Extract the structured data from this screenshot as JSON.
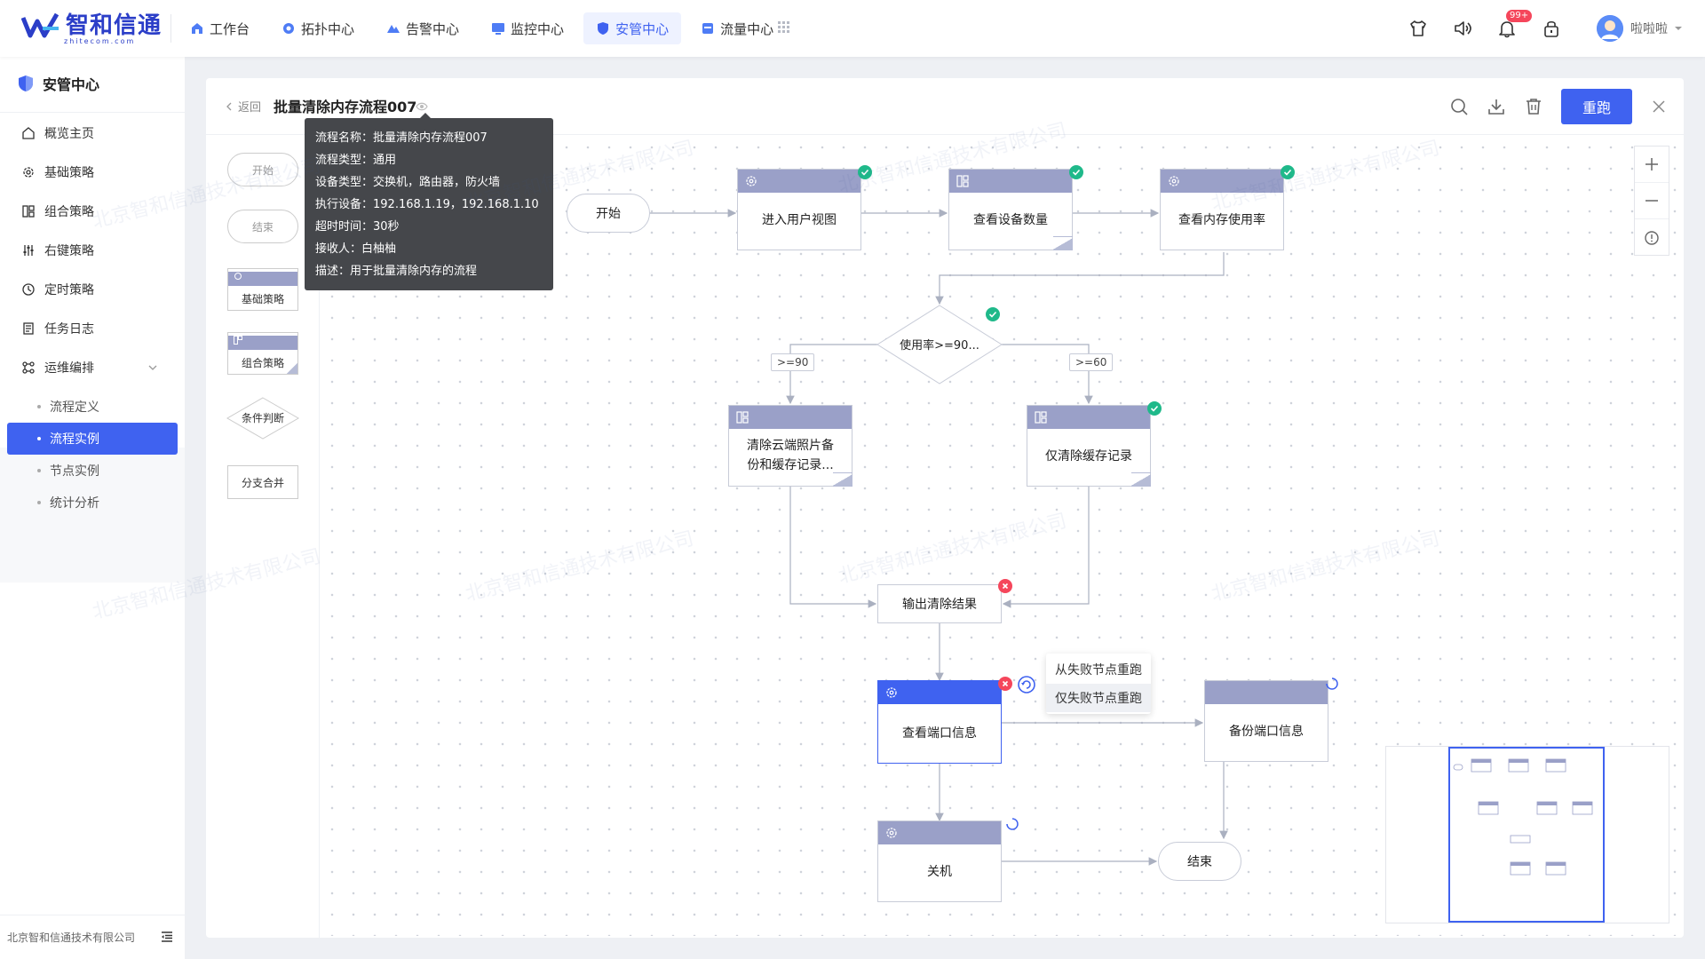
{
  "brand": {
    "name": "智和信通",
    "sub": "zhitecom.com"
  },
  "nav": {
    "items": [
      {
        "label": "工作台",
        "icon": "home-icon"
      },
      {
        "label": "拓扑中心",
        "icon": "topology-icon"
      },
      {
        "label": "告警中心",
        "icon": "alarm-icon"
      },
      {
        "label": "监控中心",
        "icon": "monitor-icon"
      },
      {
        "label": "安管中心",
        "icon": "shield-icon",
        "active": true
      },
      {
        "label": "流量中心",
        "icon": "traffic-icon"
      }
    ],
    "badge": "99+",
    "user": "啦啦啦"
  },
  "sidebar": {
    "title": "安管中心",
    "items": [
      "概览主页",
      "基础策略",
      "组合策略",
      "右键策略",
      "定时策略",
      "任务日志",
      "运维编排"
    ],
    "sub_items": [
      "流程定义",
      "流程实例",
      "节点实例",
      "统计分析"
    ],
    "footer": "北京智和信通技术有限公司"
  },
  "header": {
    "back": "返回",
    "title": "批量清除内存流程007",
    "rerun": "重跑"
  },
  "palette": {
    "start": "开始",
    "end": "结束",
    "basic": "基础策略",
    "combo": "组合策略",
    "cond": "条件判断",
    "merge": "分支合并"
  },
  "tooltip": {
    "lines": [
      "流程名称：批量清除内存流程007",
      "流程类型：通用",
      "设备类型：交换机，路由器，防火墙",
      "执行设备：192.168.1.19，192.168.1.10",
      "超时时间：30秒",
      "接收人：白柚柚",
      "描述：用于批量清除内存的流程"
    ]
  },
  "flow": {
    "start": "开始",
    "enter_view": "进入用户视图",
    "check_count": "查看设备数量",
    "check_mem": "查看内存使用率",
    "cond": "使用率>=90...",
    "edge_90": ">=90",
    "edge_60": ">=60",
    "clear_cloud_1": "清除云端照片备",
    "clear_cloud_2": "份和缓存记录...",
    "clear_cache": "仅清除缓存记录",
    "output": "输出清除结果",
    "port_info": "查看端口信息",
    "backup_port": "备份端口信息",
    "shutdown": "关机",
    "end": "结束"
  },
  "rerun_menu": [
    "从失败节点重跑",
    "仅失败节点重跑"
  ],
  "watermark": "北京智和信通技术有限公司"
}
